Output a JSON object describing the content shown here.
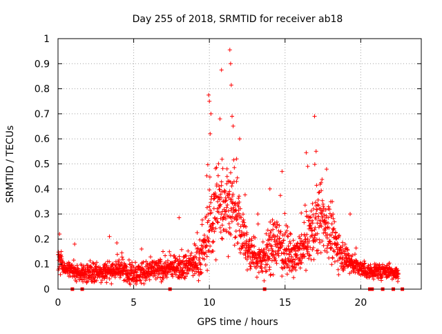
{
  "chart_data": {
    "type": "scatter",
    "title": "Day 255 of 2018, SRMTID for receiver ab18",
    "xlabel": "GPS time / hours",
    "ylabel": "SRMTID / TECUs",
    "xlim": [
      0,
      24
    ],
    "ylim": [
      0,
      1
    ],
    "grid": true,
    "marker": "+",
    "color": "#ff0000",
    "x_ticks": [
      {
        "value": 0,
        "label": "0"
      },
      {
        "value": 5,
        "label": "5"
      },
      {
        "value": 10,
        "label": "10"
      },
      {
        "value": 15,
        "label": "15"
      },
      {
        "value": 20,
        "label": "20"
      }
    ],
    "y_ticks": [
      {
        "value": 0,
        "label": "0"
      },
      {
        "value": 0.1,
        "label": "0.1"
      },
      {
        "value": 0.2,
        "label": "0.2"
      },
      {
        "value": 0.3,
        "label": "0.3"
      },
      {
        "value": 0.4,
        "label": "0.4"
      },
      {
        "value": 0.5,
        "label": "0.5"
      },
      {
        "value": 0.6,
        "label": "0.6"
      },
      {
        "value": 0.7,
        "label": "0.7"
      },
      {
        "value": 0.8,
        "label": "0.8"
      },
      {
        "value": 0.9,
        "label": "0.9"
      },
      {
        "value": 1,
        "label": "1"
      }
    ],
    "envelope_hours": [
      0,
      0.5,
      1,
      2,
      3,
      4,
      5,
      6,
      7,
      8,
      9,
      9.5,
      10,
      10.5,
      11,
      11.5,
      12,
      12.5,
      13,
      13.5,
      14,
      14.5,
      15,
      15.5,
      16,
      16.5,
      17,
      17.5,
      18,
      18.5,
      19,
      19.5,
      20,
      20.5,
      21,
      21.5,
      22,
      22.5
    ],
    "envelope_median": [
      0.12,
      0.08,
      0.07,
      0.06,
      0.07,
      0.08,
      0.06,
      0.07,
      0.08,
      0.09,
      0.1,
      0.13,
      0.25,
      0.33,
      0.35,
      0.33,
      0.26,
      0.16,
      0.13,
      0.12,
      0.15,
      0.19,
      0.15,
      0.12,
      0.14,
      0.2,
      0.26,
      0.28,
      0.22,
      0.17,
      0.12,
      0.1,
      0.08,
      0.07,
      0.07,
      0.07,
      0.07,
      0.06
    ],
    "envelope_spread": [
      0.04,
      0.02,
      0.02,
      0.03,
      0.03,
      0.03,
      0.03,
      0.03,
      0.03,
      0.03,
      0.04,
      0.05,
      0.12,
      0.13,
      0.12,
      0.11,
      0.09,
      0.06,
      0.05,
      0.05,
      0.07,
      0.08,
      0.06,
      0.05,
      0.06,
      0.08,
      0.1,
      0.09,
      0.08,
      0.06,
      0.04,
      0.03,
      0.02,
      0.02,
      0.02,
      0.02,
      0.02,
      0.02
    ],
    "points_per_hour": 90,
    "notable_points": [
      {
        "x": 11.35,
        "y": 0.955
      },
      {
        "x": 11.4,
        "y": 0.9
      },
      {
        "x": 10.8,
        "y": 0.875
      },
      {
        "x": 11.45,
        "y": 0.815
      },
      {
        "x": 9.95,
        "y": 0.775
      },
      {
        "x": 10.0,
        "y": 0.75
      },
      {
        "x": 10.1,
        "y": 0.7
      },
      {
        "x": 11.5,
        "y": 0.69
      },
      {
        "x": 16.95,
        "y": 0.69
      },
      {
        "x": 10.7,
        "y": 0.68
      },
      {
        "x": 12.0,
        "y": 0.6
      },
      {
        "x": 10.05,
        "y": 0.62
      },
      {
        "x": 16.4,
        "y": 0.545
      },
      {
        "x": 17.05,
        "y": 0.55
      },
      {
        "x": 14.8,
        "y": 0.47
      },
      {
        "x": 11.8,
        "y": 0.52
      },
      {
        "x": 16.5,
        "y": 0.49
      },
      {
        "x": 8.0,
        "y": 0.285
      },
      {
        "x": 3.4,
        "y": 0.21
      },
      {
        "x": 0.1,
        "y": 0.22
      },
      {
        "x": 1.1,
        "y": 0.18
      },
      {
        "x": 19.3,
        "y": 0.3
      },
      {
        "x": 14.0,
        "y": 0.4
      },
      {
        "x": 13.2,
        "y": 0.3
      }
    ],
    "gaps_hours": [
      [
        22.7,
        24
      ]
    ],
    "baseline_markers_hours": [
      0.95,
      1.6,
      7.4,
      13.65,
      20.6,
      20.75,
      21.45,
      22.15,
      22.75
    ]
  }
}
